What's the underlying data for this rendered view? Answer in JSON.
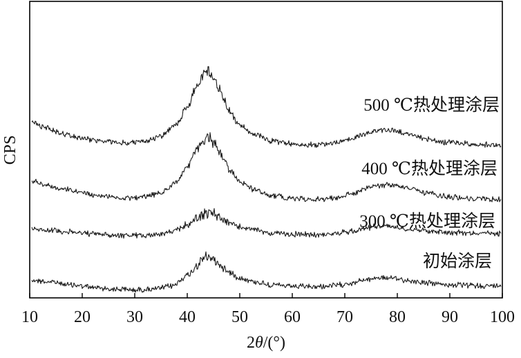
{
  "chart_data": {
    "type": "line",
    "title": "",
    "xlabel": "2θ/(°)",
    "ylabel": "CPS",
    "xlim": [
      10,
      100
    ],
    "x_ticks": [
      "10",
      "20",
      "30",
      "40",
      "50",
      "60",
      "70",
      "80",
      "90",
      "100"
    ],
    "y_ticks_shown": false,
    "grid": false,
    "legend": "none (series labeled directly above each curve)",
    "stacked_offset": true,
    "colors": {
      "line": "#1a1a1a",
      "axis": "#000000"
    },
    "series": [
      {
        "name": "初始涂层",
        "x": [
          10,
          14,
          18,
          22,
          26,
          30,
          34,
          37,
          40,
          42,
          43,
          44,
          45,
          46,
          48,
          50,
          53,
          56,
          60,
          64,
          68,
          71,
          74,
          76,
          78,
          80,
          83,
          86,
          90,
          95,
          100
        ],
        "y": [
          0.0,
          -0.05,
          -0.12,
          -0.18,
          -0.22,
          -0.24,
          -0.22,
          -0.15,
          0.1,
          0.35,
          0.5,
          0.55,
          0.5,
          0.38,
          0.18,
          0.05,
          -0.05,
          -0.12,
          -0.16,
          -0.17,
          -0.14,
          -0.08,
          0.0,
          0.05,
          0.05,
          0.02,
          -0.03,
          -0.08,
          -0.12,
          -0.14,
          -0.15
        ]
      },
      {
        "name": "300 ℃热处理涂层",
        "x": [
          10,
          14,
          18,
          22,
          26,
          30,
          34,
          37,
          40,
          42,
          43,
          44,
          45,
          46,
          48,
          50,
          53,
          56,
          60,
          64,
          68,
          71,
          74,
          76,
          78,
          80,
          83,
          86,
          90,
          95,
          100
        ],
        "y": [
          0.0,
          -0.05,
          -0.1,
          -0.14,
          -0.17,
          -0.18,
          -0.16,
          -0.1,
          0.08,
          0.25,
          0.35,
          0.38,
          0.34,
          0.26,
          0.12,
          0.03,
          -0.05,
          -0.12,
          -0.15,
          -0.16,
          -0.14,
          -0.08,
          0.0,
          0.05,
          0.05,
          0.02,
          -0.03,
          -0.07,
          -0.1,
          -0.12,
          -0.13
        ]
      },
      {
        "name": "400 ℃热处理涂层",
        "x": [
          10,
          13,
          16,
          20,
          24,
          28,
          32,
          35,
          38,
          40,
          42,
          43,
          44,
          45,
          46,
          47,
          48,
          50,
          53,
          56,
          60,
          64,
          68,
          71,
          74,
          76,
          78,
          80,
          83,
          86,
          90,
          95,
          100
        ],
        "y": [
          0.3,
          0.18,
          0.08,
          -0.02,
          -0.1,
          -0.14,
          -0.12,
          -0.02,
          0.25,
          0.6,
          1.05,
          1.25,
          1.32,
          1.22,
          1.0,
          0.78,
          0.55,
          0.25,
          0.05,
          -0.08,
          -0.15,
          -0.18,
          -0.14,
          -0.05,
          0.08,
          0.15,
          0.18,
          0.15,
          0.06,
          -0.04,
          -0.12,
          -0.16,
          -0.18
        ]
      },
      {
        "name": "500 ℃热处理涂层",
        "x": [
          10,
          13,
          16,
          20,
          24,
          28,
          32,
          35,
          38,
          40,
          42,
          43,
          44,
          45,
          46,
          47,
          48,
          50,
          53,
          56,
          60,
          64,
          68,
          71,
          74,
          76,
          78,
          80,
          83,
          86,
          90,
          95,
          100
        ],
        "y": [
          0.4,
          0.25,
          0.12,
          0.0,
          -0.08,
          -0.12,
          -0.08,
          0.05,
          0.35,
          0.75,
          1.3,
          1.55,
          1.62,
          1.48,
          1.2,
          0.92,
          0.65,
          0.3,
          0.08,
          -0.06,
          -0.14,
          -0.16,
          -0.12,
          -0.02,
          0.1,
          0.18,
          0.2,
          0.16,
          0.07,
          -0.03,
          -0.11,
          -0.15,
          -0.17
        ]
      }
    ]
  }
}
